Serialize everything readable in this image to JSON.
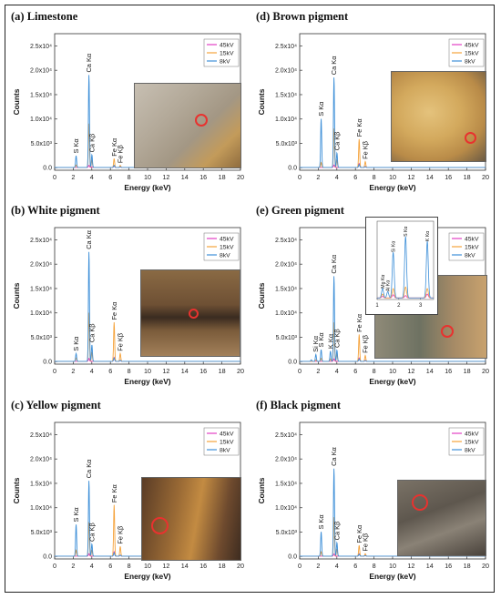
{
  "chart_data": [
    {
      "id": "a",
      "type": "line",
      "title": "(a) Limestone",
      "xlabel": "Energy (keV)",
      "ylabel": "Counts",
      "xlim": [
        0,
        20
      ],
      "ylim": [
        -500,
        27500
      ],
      "xticks": [
        0,
        2,
        4,
        6,
        8,
        10,
        12,
        14,
        16,
        18,
        20
      ],
      "yticks": [
        {
          "v": 0,
          "l": "0.0"
        },
        {
          "v": 5000,
          "l": "5.0x10³"
        },
        {
          "v": 10000,
          "l": "1.0x10⁴"
        },
        {
          "v": 15000,
          "l": "1.5x10⁴"
        },
        {
          "v": 20000,
          "l": "2.0x10⁴"
        },
        {
          "v": 25000,
          "l": "2.5x10⁴"
        }
      ],
      "legend": {
        "position": "top-right",
        "items": [
          "45kV",
          "15kV",
          "8kV"
        ]
      },
      "series": [
        {
          "name": "45kV",
          "color": "#e33fc4",
          "peaks": [
            [
              3.69,
              420
            ],
            [
              4.01,
              120
            ],
            [
              6.4,
              260
            ],
            [
              7.06,
              90
            ]
          ]
        },
        {
          "name": "15kV",
          "color": "#f5a23a",
          "peaks": [
            [
              2.31,
              500
            ],
            [
              3.69,
              9000
            ],
            [
              4.01,
              1500
            ],
            [
              6.4,
              1800
            ],
            [
              7.06,
              420
            ]
          ]
        },
        {
          "name": "8kV",
          "color": "#3d8fd8",
          "peaks": [
            [
              2.31,
              2400
            ],
            [
              3.69,
              19000
            ],
            [
              4.01,
              2600
            ],
            [
              6.4,
              420
            ],
            [
              7.06,
              130
            ]
          ]
        }
      ],
      "annotations": [
        {
          "text": "S Kα",
          "x": 2.31,
          "y": 2400
        },
        {
          "text": "Ca Kα",
          "x": 3.69,
          "y": 19000
        },
        {
          "text": "Ca Kβ",
          "x": 4.01,
          "y": 2600
        },
        {
          "text": "Fe Kα",
          "x": 6.4,
          "y": 1800
        },
        {
          "text": "Fe Kβ",
          "x": 7.06,
          "y": 420
        }
      ]
    },
    {
      "id": "b",
      "type": "line",
      "title": "(b) White pigment",
      "xlabel": "Energy (keV)",
      "ylabel": "Counts",
      "xlim": [
        0,
        20
      ],
      "ylim": [
        -500,
        27500
      ],
      "xticks": [
        0,
        2,
        4,
        6,
        8,
        10,
        12,
        14,
        16,
        18,
        20
      ],
      "yticks": [
        {
          "v": 0,
          "l": "0.0"
        },
        {
          "v": 5000,
          "l": "5.0x10³"
        },
        {
          "v": 10000,
          "l": "1.0x10⁴"
        },
        {
          "v": 15000,
          "l": "1.5x10⁴"
        },
        {
          "v": 20000,
          "l": "2.0x10⁴"
        },
        {
          "v": 25000,
          "l": "2.5x10⁴"
        }
      ],
      "legend": {
        "position": "top-right",
        "items": [
          "45kV",
          "15kV",
          "8kV"
        ]
      },
      "series": [
        {
          "name": "45kV",
          "color": "#e33fc4",
          "peaks": [
            [
              3.69,
              600
            ],
            [
              6.4,
              800
            ],
            [
              7.06,
              200
            ]
          ]
        },
        {
          "name": "15kV",
          "color": "#f5a23a",
          "peaks": [
            [
              2.31,
              700
            ],
            [
              3.69,
              10000
            ],
            [
              4.01,
              1800
            ],
            [
              6.4,
              8000
            ],
            [
              7.06,
              1600
            ]
          ]
        },
        {
          "name": "8kV",
          "color": "#3d8fd8",
          "peaks": [
            [
              2.31,
              1600
            ],
            [
              3.69,
              22500
            ],
            [
              4.01,
              3400
            ],
            [
              6.4,
              700
            ],
            [
              7.06,
              200
            ]
          ]
        }
      ],
      "annotations": [
        {
          "text": "S Kα",
          "x": 2.31,
          "y": 1600
        },
        {
          "text": "Ca Kα",
          "x": 3.69,
          "y": 22500
        },
        {
          "text": "Ca Kβ",
          "x": 4.01,
          "y": 3400
        },
        {
          "text": "Fe Kα",
          "x": 6.4,
          "y": 8000
        },
        {
          "text": "Fe Kβ",
          "x": 7.06,
          "y": 1600
        }
      ]
    },
    {
      "id": "c",
      "type": "line",
      "title": "(c) Yellow pigment",
      "xlabel": "Energy (keV)",
      "ylabel": "Counts",
      "xlim": [
        0,
        20
      ],
      "ylim": [
        -500,
        27500
      ],
      "xticks": [
        0,
        2,
        4,
        6,
        8,
        10,
        12,
        14,
        16,
        18,
        20
      ],
      "yticks": [
        {
          "v": 0,
          "l": "0.0"
        },
        {
          "v": 5000,
          "l": "5.0x10³"
        },
        {
          "v": 10000,
          "l": "1.0x10⁴"
        },
        {
          "v": 15000,
          "l": "1.5x10⁴"
        },
        {
          "v": 20000,
          "l": "2.0x10⁴"
        },
        {
          "v": 25000,
          "l": "2.5x10⁴"
        }
      ],
      "legend": {
        "position": "top-right",
        "items": [
          "45kV",
          "15kV",
          "8kV"
        ]
      },
      "series": [
        {
          "name": "45kV",
          "color": "#e33fc4",
          "peaks": [
            [
              3.69,
              500
            ],
            [
              6.4,
              900
            ],
            [
              7.06,
              200
            ]
          ]
        },
        {
          "name": "15kV",
          "color": "#f5a23a",
          "peaks": [
            [
              2.31,
              1200
            ],
            [
              3.69,
              7000
            ],
            [
              4.01,
              1200
            ],
            [
              6.4,
              10500
            ],
            [
              7.06,
              2000
            ]
          ]
        },
        {
          "name": "8kV",
          "color": "#3d8fd8",
          "peaks": [
            [
              2.31,
              6500
            ],
            [
              3.69,
              15500
            ],
            [
              4.01,
              2500
            ],
            [
              6.4,
              700
            ],
            [
              7.06,
              200
            ]
          ]
        }
      ],
      "annotations": [
        {
          "text": "S Kα",
          "x": 2.31,
          "y": 6500
        },
        {
          "text": "Ca Kα",
          "x": 3.69,
          "y": 15500
        },
        {
          "text": "Ca Kβ",
          "x": 4.01,
          "y": 2500
        },
        {
          "text": "Fe Kα",
          "x": 6.4,
          "y": 10500
        },
        {
          "text": "Fe Kβ",
          "x": 7.06,
          "y": 2000
        }
      ]
    },
    {
      "id": "d",
      "type": "line",
      "title": "(d) Brown pigment",
      "xlabel": "Energy (keV)",
      "ylabel": "Counts",
      "xlim": [
        0,
        20
      ],
      "ylim": [
        -500,
        27500
      ],
      "xticks": [
        0,
        2,
        4,
        6,
        8,
        10,
        12,
        14,
        16,
        18,
        20
      ],
      "yticks": [
        {
          "v": 0,
          "l": "0.0"
        },
        {
          "v": 5000,
          "l": "5.0x10³"
        },
        {
          "v": 10000,
          "l": "1.0x10⁴"
        },
        {
          "v": 15000,
          "l": "1.5x10⁴"
        },
        {
          "v": 20000,
          "l": "2.0x10⁴"
        },
        {
          "v": 25000,
          "l": "2.5x10⁴"
        }
      ],
      "legend": {
        "position": "top-right",
        "items": [
          "45kV",
          "15kV",
          "8kV"
        ]
      },
      "series": [
        {
          "name": "45kV",
          "color": "#e33fc4",
          "peaks": [
            [
              3.69,
              500
            ],
            [
              6.4,
              800
            ],
            [
              7.06,
              200
            ]
          ]
        },
        {
          "name": "15kV",
          "color": "#f5a23a",
          "peaks": [
            [
              2.31,
              1000
            ],
            [
              3.69,
              8000
            ],
            [
              4.01,
              1500
            ],
            [
              6.4,
              5800
            ],
            [
              7.06,
              1200
            ]
          ]
        },
        {
          "name": "8kV",
          "color": "#3d8fd8",
          "peaks": [
            [
              2.31,
              10000
            ],
            [
              3.69,
              18500
            ],
            [
              4.01,
              3000
            ],
            [
              6.4,
              600
            ],
            [
              7.06,
              150
            ]
          ]
        }
      ],
      "annotations": [
        {
          "text": "S Kα",
          "x": 2.31,
          "y": 10000
        },
        {
          "text": "Ca Kα",
          "x": 3.69,
          "y": 18500
        },
        {
          "text": "Ca Kβ",
          "x": 4.01,
          "y": 3000
        },
        {
          "text": "Fe Kα",
          "x": 6.4,
          "y": 5800
        },
        {
          "text": "Fe Kβ",
          "x": 7.06,
          "y": 1200
        }
      ]
    },
    {
      "id": "e",
      "type": "line",
      "title": "(e) Green pigment",
      "xlabel": "Energy (keV)",
      "ylabel": "Counts",
      "xlim": [
        0,
        20
      ],
      "ylim": [
        -500,
        27500
      ],
      "xticks": [
        0,
        2,
        4,
        6,
        8,
        10,
        12,
        14,
        16,
        18,
        20
      ],
      "yticks": [
        {
          "v": 0,
          "l": "0.0"
        },
        {
          "v": 5000,
          "l": "5.0x10³"
        },
        {
          "v": 10000,
          "l": "1.0x10⁴"
        },
        {
          "v": 15000,
          "l": "1.5x10⁴"
        },
        {
          "v": 20000,
          "l": "2.0x10⁴"
        },
        {
          "v": 25000,
          "l": "2.5x10⁴"
        }
      ],
      "legend": {
        "position": "top-right",
        "items": [
          "45kV",
          "15kV",
          "8kV"
        ]
      },
      "series": [
        {
          "name": "45kV",
          "color": "#e33fc4",
          "peaks": [
            [
              3.69,
              500
            ],
            [
              6.4,
              700
            ],
            [
              7.06,
              200
            ]
          ]
        },
        {
          "name": "15kV",
          "color": "#f5a23a",
          "peaks": [
            [
              1.74,
              300
            ],
            [
              2.31,
              600
            ],
            [
              3.31,
              500
            ],
            [
              3.69,
              8000
            ],
            [
              4.01,
              1500
            ],
            [
              6.4,
              5500
            ],
            [
              7.06,
              1200
            ]
          ]
        },
        {
          "name": "8kV",
          "color": "#3d8fd8",
          "peaks": [
            [
              1.25,
              300
            ],
            [
              1.74,
              1400
            ],
            [
              2.31,
              2400
            ],
            [
              3.31,
              2100
            ],
            [
              3.69,
              17500
            ],
            [
              4.01,
              2300
            ],
            [
              6.4,
              500
            ],
            [
              7.06,
              150
            ]
          ]
        }
      ],
      "annotations": [
        {
          "text": "Si Kα",
          "x": 1.74,
          "y": 1400
        },
        {
          "text": "S Kα",
          "x": 2.31,
          "y": 2400
        },
        {
          "text": "K Kα",
          "x": 3.31,
          "y": 2100
        },
        {
          "text": "Ca Kα",
          "x": 3.69,
          "y": 17500
        },
        {
          "text": "Ca Kβ",
          "x": 4.01,
          "y": 2300
        },
        {
          "text": "Fe Kα",
          "x": 6.4,
          "y": 5500
        },
        {
          "text": "Fe Kβ",
          "x": 7.06,
          "y": 1200
        }
      ],
      "inset": {
        "xlim": [
          1,
          3.6
        ],
        "ylim": [
          0,
          1
        ],
        "xticks": [
          1,
          2,
          3
        ],
        "series": [
          {
            "name": "45kV",
            "color": "#e33fc4",
            "peaks": [
              [
                1.25,
                0.02
              ],
              [
                1.74,
                0.04
              ],
              [
                2.31,
                0.03
              ],
              [
                3.31,
                0.05
              ]
            ]
          },
          {
            "name": "15kV",
            "color": "#f5a23a",
            "peaks": [
              [
                1.25,
                0.05
              ],
              [
                1.74,
                0.12
              ],
              [
                2.31,
                0.14
              ],
              [
                3.31,
                0.12
              ]
            ]
          },
          {
            "name": "8kV",
            "color": "#3d8fd8",
            "peaks": [
              [
                1.25,
                0.12
              ],
              [
                1.49,
                0.08
              ],
              [
                1.74,
                0.58
              ],
              [
                2.31,
                0.78
              ],
              [
                3.31,
                0.72
              ]
            ]
          }
        ],
        "annotations": [
          {
            "text": "Mg Kα",
            "x": 1.25,
            "y": 0.12
          },
          {
            "text": "Al Kα",
            "x": 1.49,
            "y": 0.08
          },
          {
            "text": "Si Kα",
            "x": 1.74,
            "y": 0.58
          },
          {
            "text": "S Kα",
            "x": 2.31,
            "y": 0.78
          },
          {
            "text": "K Kα",
            "x": 3.31,
            "y": 0.72
          }
        ]
      }
    },
    {
      "id": "f",
      "type": "line",
      "title": "(f) Black pigment",
      "xlabel": "Energy (keV)",
      "ylabel": "Counts",
      "xlim": [
        0,
        20
      ],
      "ylim": [
        -500,
        27500
      ],
      "xticks": [
        0,
        2,
        4,
        6,
        8,
        10,
        12,
        14,
        16,
        18,
        20
      ],
      "yticks": [
        {
          "v": 0,
          "l": "0.0"
        },
        {
          "v": 5000,
          "l": "5.0x10³"
        },
        {
          "v": 10000,
          "l": "1.0x10⁴"
        },
        {
          "v": 15000,
          "l": "1.5x10⁴"
        },
        {
          "v": 20000,
          "l": "2.0x10⁴"
        },
        {
          "v": 25000,
          "l": "2.5x10⁴"
        }
      ],
      "legend": {
        "position": "top-right",
        "items": [
          "45kV",
          "15kV",
          "8kV"
        ]
      },
      "series": [
        {
          "name": "45kV",
          "color": "#e33fc4",
          "peaks": [
            [
              3.69,
              450
            ],
            [
              6.4,
              500
            ],
            [
              7.06,
              150
            ]
          ]
        },
        {
          "name": "15kV",
          "color": "#f5a23a",
          "peaks": [
            [
              2.31,
              900
            ],
            [
              3.69,
              8000
            ],
            [
              4.01,
              1400
            ],
            [
              6.4,
              2200
            ],
            [
              7.06,
              500
            ]
          ]
        },
        {
          "name": "8kV",
          "color": "#3d8fd8",
          "peaks": [
            [
              2.31,
              5000
            ],
            [
              3.69,
              18000
            ],
            [
              4.01,
              2800
            ],
            [
              6.4,
              400
            ],
            [
              7.06,
              120
            ]
          ]
        }
      ],
      "annotations": [
        {
          "text": "S Kα",
          "x": 2.31,
          "y": 5000
        },
        {
          "text": "Ca Kα",
          "x": 3.69,
          "y": 18000
        },
        {
          "text": "Ca Kβ",
          "x": 4.01,
          "y": 2800
        },
        {
          "text": "Fe Kα",
          "x": 6.4,
          "y": 2200
        },
        {
          "text": "Fe Kβ",
          "x": 7.06,
          "y": 500
        }
      ]
    }
  ],
  "photos": [
    {
      "panel": "a",
      "description_colors": [
        "#bdb4a6",
        "#a89d8c",
        "#c9a66a"
      ]
    },
    {
      "panel": "b",
      "description_colors": [
        "#7a5a3a",
        "#3b2c22",
        "#a07a52"
      ]
    },
    {
      "panel": "c",
      "description_colors": [
        "#6f4b2e",
        "#c0873e",
        "#4a3424"
      ]
    },
    {
      "panel": "d",
      "description_colors": [
        "#d9b56b",
        "#c89a52",
        "#8a6a3e"
      ]
    },
    {
      "panel": "e",
      "description_colors": [
        "#7d7a68",
        "#a88c68",
        "#5d6556"
      ]
    },
    {
      "panel": "f",
      "description_colors": [
        "#6a6258",
        "#8a8276",
        "#4e4740"
      ]
    }
  ]
}
